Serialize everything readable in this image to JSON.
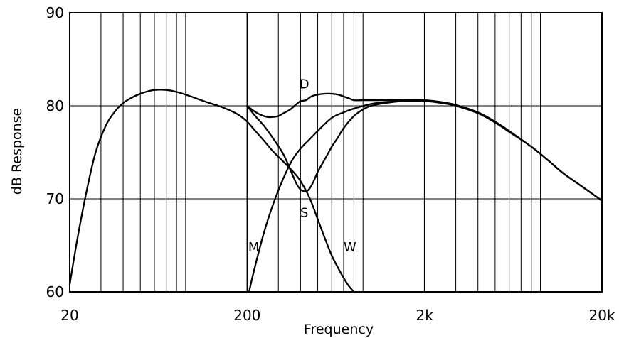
{
  "chart_data": {
    "type": "line",
    "xlabel": "Frequency",
    "ylabel": "dB Response",
    "x_scale": "log",
    "xlim": [
      20,
      20000
    ],
    "ylim": [
      60,
      90
    ],
    "x_ticks": [
      {
        "value": 20,
        "label": "20"
      },
      {
        "value": 200,
        "label": "200"
      },
      {
        "value": 2000,
        "label": "2k"
      },
      {
        "value": 20000,
        "label": "20k"
      }
    ],
    "y_ticks": [
      {
        "value": 60,
        "label": "60"
      },
      {
        "value": 70,
        "label": "70"
      },
      {
        "value": 80,
        "label": "80"
      },
      {
        "value": 90,
        "label": "90"
      }
    ],
    "grid": true,
    "series": [
      {
        "name": "W",
        "x": [
          20,
          22,
          25,
          28,
          32,
          36,
          40,
          45,
          50,
          55,
          60,
          70,
          80,
          90,
          100,
          110,
          125,
          140,
          160,
          180,
          200,
          220,
          250,
          280,
          320,
          360,
          400,
          450,
          500,
          550,
          600,
          650,
          700,
          750,
          800
        ],
        "y": [
          60.8,
          65.5,
          71,
          75,
          77.9,
          79.4,
          80.3,
          80.9,
          81.3,
          81.55,
          81.7,
          81.7,
          81.5,
          81.2,
          80.9,
          80.6,
          80.25,
          79.95,
          79.5,
          79.0,
          78.3,
          77.4,
          76.2,
          75.1,
          74.0,
          73.0,
          71.9,
          70.1,
          67.8,
          65.7,
          63.9,
          62.6,
          61.5,
          60.6,
          60.0
        ]
      },
      {
        "name": "M",
        "x": [
          205,
          220,
          250,
          280,
          320,
          360,
          400,
          450,
          500,
          600,
          700,
          800,
          1000,
          1200,
          1500,
          2000,
          2500,
          3000,
          4000,
          5000,
          6000,
          8000,
          10000,
          12000,
          15000,
          20000
        ],
        "y": [
          60.0,
          62.5,
          66.5,
          69.4,
          72.2,
          74.2,
          75.4,
          76.4,
          77.3,
          78.7,
          79.3,
          79.7,
          80.2,
          80.4,
          80.5,
          80.5,
          80.3,
          80.0,
          79.2,
          78.2,
          77.2,
          75.6,
          74.1,
          72.8,
          71.5,
          69.8
        ]
      },
      {
        "name": "S",
        "x": [
          200,
          220,
          250,
          280,
          320,
          360,
          380,
          400,
          420,
          440,
          460,
          480,
          500,
          550,
          600,
          650,
          700,
          800,
          900,
          1000,
          1200,
          1500,
          2000,
          2500,
          3000,
          4000,
          5000,
          6000,
          8000,
          10000,
          12000,
          15000,
          20000
        ],
        "y": [
          80.0,
          79.0,
          77.8,
          76.5,
          74.8,
          72.6,
          71.6,
          71.0,
          70.8,
          70.9,
          71.4,
          72.1,
          72.9,
          74.3,
          75.6,
          76.6,
          77.6,
          78.9,
          79.6,
          80.0,
          80.3,
          80.5,
          80.6,
          80.4,
          80.1,
          79.3,
          78.3,
          77.3,
          75.6,
          74.1,
          72.8,
          71.5,
          69.8
        ]
      },
      {
        "name": "D",
        "x": [
          200,
          220,
          240,
          260,
          280,
          300,
          320,
          350,
          380,
          400,
          430,
          460,
          500,
          550,
          600,
          650,
          700,
          750,
          800,
          900,
          1000,
          1200,
          1500,
          1800,
          2000
        ],
        "y": [
          80.0,
          79.4,
          79.0,
          78.8,
          78.8,
          78.9,
          79.2,
          79.6,
          80.2,
          80.5,
          80.6,
          81.0,
          81.2,
          81.3,
          81.3,
          81.2,
          81.0,
          80.8,
          80.6,
          80.6,
          80.6,
          80.6,
          80.6,
          80.6,
          80.6
        ]
      }
    ],
    "curve_labels": [
      {
        "text": "D",
        "x": 420,
        "y": 82.4
      },
      {
        "text": "S",
        "x": 420,
        "y": 68.6
      },
      {
        "text": "M",
        "x": 218,
        "y": 64.9
      },
      {
        "text": "W",
        "x": 760,
        "y": 64.9
      }
    ]
  }
}
